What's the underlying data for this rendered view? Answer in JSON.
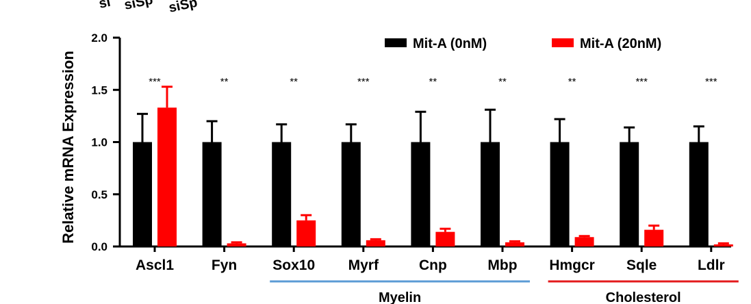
{
  "chart_data": {
    "type": "bar",
    "ylabel": "Relative mRNA Expression",
    "ylim": [
      0,
      2.0
    ],
    "yticks": [
      "0.0",
      "0.5",
      "1.0",
      "1.5",
      "2.0"
    ],
    "categories": [
      "Ascl1",
      "Fyn",
      "Sox10",
      "Myrf",
      "Cnp",
      "Mbp",
      "Hmgcr",
      "Sqle",
      "Ldlr"
    ],
    "series": [
      {
        "name": "Mit-A (0nM)",
        "color": "#000000",
        "values": [
          1.0,
          1.0,
          1.0,
          1.0,
          1.0,
          1.0,
          1.0,
          1.0,
          1.0
        ],
        "errors": [
          0.27,
          0.2,
          0.17,
          0.17,
          0.29,
          0.31,
          0.22,
          0.14,
          0.15
        ]
      },
      {
        "name": "Mit-A (20nM)",
        "color": "#ff0000",
        "values": [
          1.33,
          0.03,
          0.25,
          0.06,
          0.14,
          0.04,
          0.09,
          0.16,
          0.02
        ],
        "errors": [
          0.2,
          0.01,
          0.05,
          0.01,
          0.03,
          0.01,
          0.01,
          0.04,
          0.01
        ]
      }
    ],
    "significance": [
      "***",
      "**",
      "**",
      "***",
      "**",
      "**",
      "**",
      "***",
      "***"
    ],
    "groups": [
      {
        "label": "Myelin",
        "from": "Sox10",
        "to": "Mbp",
        "color": "#5b9bd5"
      },
      {
        "label": "Cholesterol",
        "from": "Hmgcr",
        "to": "Ldlr",
        "color": "#e31a1c"
      }
    ],
    "legend_position": "top-right",
    "grid": false
  },
  "top_fragments": [
    "si",
    "siSp",
    "siSp"
  ]
}
